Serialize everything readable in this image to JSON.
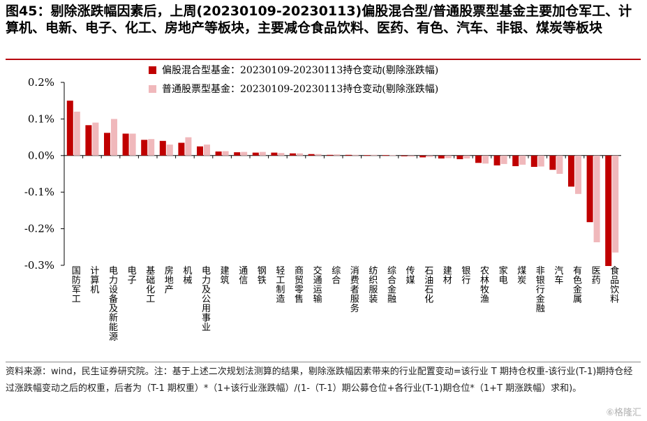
{
  "title": "图45：剔除涨跌幅因素后，上周(20230109-20230113)偏股混合型/普通股票型基金主要加仓军工、计算机、电新、电子、化工、房地产等板块，主要减仓食品饮料、医药、有色、汽车、非银、煤炭等板块",
  "footnote": "资料来源：wind，民生证券研究院。注：基于上述二次规划法测算的结果，剔除涨跌幅因素带来的行业配置变动=该行业 T 期持仓权重-该行业(T-1)期持仓经过涨跌幅变动之后的权重，后者为（T-1 期权重）*（1+该行业涨跌幅）/(1-（T-1）期公募仓位+各行业(T-1)期仓位*（1+T 期涨跌幅）求和)。",
  "watermark": "⑥格隆汇",
  "colors": {
    "series1": "#c00000",
    "series2": "#f0b8bb",
    "rule": "#b7080f"
  },
  "chart_data": {
    "type": "bar",
    "categories": [
      "国防军工",
      "计算机",
      "电力设备及新能源",
      "电子",
      "基础化工",
      "房地产",
      "机械",
      "电力及公用事业",
      "建筑",
      "通信",
      "钢铁",
      "轻工制造",
      "商贸零售",
      "交通运输",
      "综合",
      "消费者服务",
      "纺织服装",
      "综合金融",
      "传媒",
      "石油石化",
      "建材",
      "银行",
      "农林牧渔",
      "家电",
      "煤炭",
      "非银行金融",
      "汽车",
      "有色金属",
      "医药",
      "食品饮料"
    ],
    "series": [
      {
        "name": "偏股混合型基金：20230109-20230113持仓变动(剔除涨跌幅)",
        "values": [
          0.15,
          0.083,
          0.062,
          0.06,
          0.043,
          0.04,
          0.035,
          0.025,
          0.011,
          0.009,
          0.008,
          0.008,
          0.006,
          0.004,
          0.002,
          0.002,
          0.001,
          0.001,
          -0.002,
          -0.005,
          -0.008,
          -0.01,
          -0.02,
          -0.027,
          -0.029,
          -0.031,
          -0.039,
          -0.085,
          -0.182,
          -0.302
        ]
      },
      {
        "name": "普通股票型基金：20230109-20230113持仓变动(剔除涨跌幅)",
        "values": [
          0.12,
          0.09,
          0.1,
          0.06,
          0.045,
          0.03,
          0.05,
          0.03,
          0.012,
          0.01,
          0.01,
          0.007,
          0.006,
          0.004,
          0.003,
          0.002,
          0.002,
          0.001,
          -0.003,
          -0.004,
          -0.007,
          -0.008,
          -0.022,
          -0.023,
          -0.025,
          -0.03,
          -0.05,
          -0.105,
          -0.237,
          -0.265
        ]
      }
    ],
    "yticks": [
      "0.2%",
      "0.1%",
      "0.0%",
      "-0.1%",
      "-0.2%",
      "-0.3%"
    ],
    "ylim": [
      -0.3,
      0.2
    ],
    "legend_position": "top-center",
    "grid": false
  }
}
